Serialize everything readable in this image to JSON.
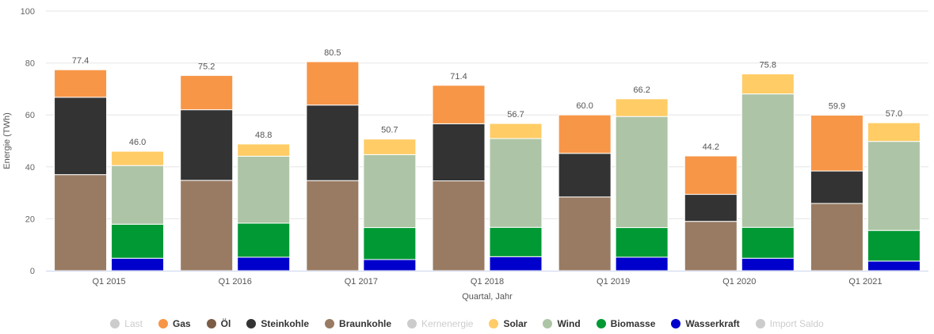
{
  "chart_data": {
    "type": "bar",
    "stacked": true,
    "ylabel": "Energie (TWh)",
    "xlabel": "Quartal, Jahr",
    "ylim": [
      0,
      100
    ],
    "yticks": [
      0,
      20,
      40,
      60,
      80,
      100
    ],
    "grid": true,
    "legend_position": "bottom",
    "categories": [
      "Q1 2015",
      "Q1 2016",
      "Q1 2017",
      "Q1 2018",
      "Q1 2019",
      "Q1 2020",
      "Q1 2021"
    ],
    "groups": [
      "left",
      "right"
    ],
    "totals": {
      "left": [
        77.4,
        75.2,
        80.5,
        71.4,
        60.0,
        44.2,
        59.9
      ],
      "right": [
        46.0,
        48.8,
        50.7,
        56.7,
        66.2,
        75.8,
        57.0
      ]
    },
    "series": [
      {
        "name": "Last",
        "color": "#cccccc",
        "visible": false
      },
      {
        "name": "Gas",
        "color": "#f79647",
        "visible": true,
        "left": [
          10.6,
          13.2,
          16.7,
          14.8,
          14.8,
          14.8,
          21.5
        ],
        "right": [
          0,
          0,
          0,
          0,
          0,
          0,
          0
        ]
      },
      {
        "name": "Öl",
        "color": "#7c5c45",
        "visible": true,
        "left": [
          0,
          0,
          0,
          0,
          0,
          0,
          0
        ],
        "right": [
          0,
          0,
          0,
          0,
          0,
          0,
          0
        ]
      },
      {
        "name": "Steinkohle",
        "color": "#333333",
        "visible": true,
        "left": [
          29.8,
          27.2,
          29.1,
          22.0,
          16.8,
          10.4,
          12.5
        ],
        "right": [
          0,
          0,
          0,
          0,
          0,
          0,
          0
        ]
      },
      {
        "name": "Braunkohle",
        "color": "#997b63",
        "visible": true,
        "left": [
          37.0,
          34.8,
          34.7,
          34.6,
          28.4,
          19.0,
          25.9
        ],
        "right": [
          0,
          0,
          0,
          0,
          0,
          0,
          0
        ]
      },
      {
        "name": "Kernenergie",
        "color": "#cccccc",
        "visible": false
      },
      {
        "name": "Solar",
        "color": "#ffcc66",
        "visible": true,
        "left": [
          0,
          0,
          0,
          0,
          0,
          0,
          0
        ],
        "right": [
          5.5,
          4.7,
          6.0,
          5.8,
          6.8,
          7.7,
          7.2
        ]
      },
      {
        "name": "Wind",
        "color": "#adc5a6",
        "visible": true,
        "left": [
          0,
          0,
          0,
          0,
          0,
          0,
          0
        ],
        "right": [
          22.6,
          25.8,
          28.1,
          34.2,
          42.8,
          51.4,
          34.3
        ]
      },
      {
        "name": "Biomasse",
        "color": "#009933",
        "visible": true,
        "left": [
          0,
          0,
          0,
          0,
          0,
          0,
          0
        ],
        "right": [
          13.1,
          13.1,
          12.3,
          11.3,
          11.4,
          11.9,
          11.8
        ]
      },
      {
        "name": "Wasserkraft",
        "color": "#0000cc",
        "visible": true,
        "left": [
          0,
          0,
          0,
          0,
          0,
          0,
          0
        ],
        "right": [
          4.8,
          5.2,
          4.3,
          5.4,
          5.2,
          4.8,
          3.7
        ]
      },
      {
        "name": "Import Saldo",
        "color": "#cccccc",
        "visible": false
      }
    ]
  }
}
